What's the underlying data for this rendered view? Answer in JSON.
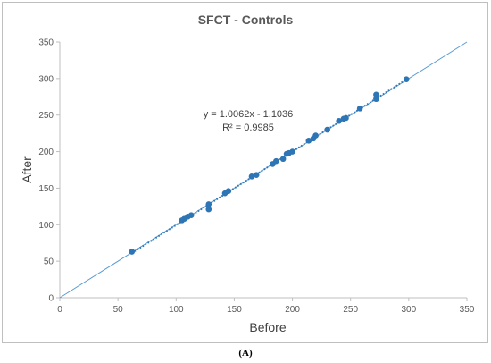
{
  "chart_data": {
    "type": "scatter",
    "title": "SFCT - Controls",
    "xlabel": "Before",
    "ylabel": "After",
    "xlim": [
      0,
      350
    ],
    "ylim": [
      0,
      350
    ],
    "xticks": [
      "0",
      "50",
      "100",
      "150",
      "200",
      "250",
      "300",
      "350"
    ],
    "yticks": [
      "0",
      "50",
      "100",
      "150",
      "200",
      "250",
      "300",
      "350"
    ],
    "grid": false,
    "legend": "none",
    "point_color": "#2e75b6",
    "line_color": "#5b9bd5",
    "identity_line": {
      "slope": 1,
      "intercept": 0
    },
    "trendline": {
      "slope": 1.0062,
      "intercept": -1.1036,
      "style": "dotted"
    },
    "annotation": {
      "equation": "y = 1.0062x - 1.1036",
      "r2": "R² = 0.9985"
    },
    "points": [
      [
        62,
        63
      ],
      [
        105,
        106
      ],
      [
        107,
        108
      ],
      [
        110,
        111
      ],
      [
        113,
        113
      ],
      [
        128,
        121
      ],
      [
        128,
        128
      ],
      [
        142,
        143
      ],
      [
        145,
        146
      ],
      [
        165,
        166
      ],
      [
        169,
        168
      ],
      [
        183,
        183
      ],
      [
        186,
        187
      ],
      [
        192,
        190
      ],
      [
        195,
        197
      ],
      [
        197,
        198
      ],
      [
        200,
        200
      ],
      [
        214,
        215
      ],
      [
        218,
        218
      ],
      [
        220,
        222
      ],
      [
        230,
        230
      ],
      [
        240,
        242
      ],
      [
        244,
        245
      ],
      [
        246,
        246
      ],
      [
        258,
        259
      ],
      [
        272,
        272
      ],
      [
        272,
        278
      ],
      [
        298,
        299
      ]
    ]
  },
  "caption": "(A)"
}
